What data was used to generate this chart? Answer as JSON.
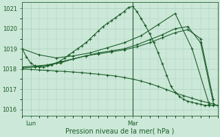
{
  "xlabel": "Pression niveau de la mer( hPa )",
  "ylim": [
    1015.7,
    1021.3
  ],
  "xlim": [
    0,
    46
  ],
  "yticks": [
    1016,
    1017,
    1018,
    1019,
    1020,
    1021
  ],
  "xtick_positions": [
    2,
    26
  ],
  "xtick_labels": [
    "Lun",
    "Mar"
  ],
  "vline_x": 26,
  "bg_color": "#cce8d8",
  "grid_color": "#aacfbe",
  "line_color": "#1a5c28",
  "series1_x": [
    0,
    1,
    2,
    3,
    4,
    5,
    6,
    7,
    8,
    9,
    10,
    11,
    12,
    13,
    14,
    15,
    16,
    17,
    18,
    19,
    20,
    21,
    22,
    23,
    24,
    25,
    26,
    27,
    28,
    29,
    30,
    31,
    32,
    33,
    34,
    35,
    36,
    37,
    38,
    39,
    40,
    41,
    42,
    43,
    44,
    45,
    46
  ],
  "series1_y": [
    1019.0,
    1018.6,
    1018.3,
    1018.15,
    1018.1,
    1018.1,
    1018.15,
    1018.2,
    1018.3,
    1018.4,
    1018.55,
    1018.7,
    1018.85,
    1019.0,
    1019.15,
    1019.3,
    1019.5,
    1019.7,
    1019.9,
    1020.1,
    1020.25,
    1020.4,
    1020.55,
    1020.7,
    1020.85,
    1021.05,
    1021.1,
    1020.85,
    1020.5,
    1020.15,
    1019.75,
    1019.3,
    1018.8,
    1018.25,
    1017.7,
    1017.15,
    1016.85,
    1016.65,
    1016.5,
    1016.4,
    1016.35,
    1016.3,
    1016.25,
    1016.2,
    1016.2,
    1016.2,
    1016.2
  ],
  "series2_x": [
    0,
    2,
    4,
    6,
    8,
    10,
    12,
    14,
    16,
    18,
    20,
    22,
    24,
    26,
    28,
    30,
    32,
    34,
    36,
    38,
    40,
    42,
    44,
    46
  ],
  "series2_y": [
    1018.0,
    1017.98,
    1017.95,
    1017.93,
    1017.9,
    1017.88,
    1017.85,
    1017.82,
    1017.78,
    1017.74,
    1017.7,
    1017.65,
    1017.58,
    1017.5,
    1017.4,
    1017.28,
    1017.14,
    1016.98,
    1016.82,
    1016.68,
    1016.55,
    1016.42,
    1016.32,
    1016.2
  ],
  "series3_x": [
    0,
    3,
    6,
    9,
    12,
    15,
    18,
    21,
    24,
    27,
    30,
    33,
    36,
    39,
    42,
    45
  ],
  "series3_y": [
    1018.1,
    1018.15,
    1018.2,
    1018.3,
    1018.5,
    1018.65,
    1018.75,
    1018.85,
    1018.95,
    1019.1,
    1019.3,
    1019.55,
    1019.8,
    1019.95,
    1019.5,
    1016.5
  ],
  "series4_x": [
    0,
    3,
    6,
    9,
    12,
    15,
    18,
    21,
    24,
    27,
    30,
    33,
    36,
    39,
    42,
    45
  ],
  "series4_y": [
    1018.05,
    1018.1,
    1018.2,
    1018.35,
    1018.5,
    1018.65,
    1018.8,
    1018.9,
    1019.0,
    1019.2,
    1019.45,
    1019.7,
    1020.0,
    1020.1,
    1019.3,
    1016.3
  ],
  "series5_x": [
    0,
    4,
    8,
    12,
    16,
    20,
    24,
    28,
    32,
    36,
    40,
    44
  ],
  "series5_y": [
    1019.0,
    1018.7,
    1018.55,
    1018.65,
    1018.8,
    1019.05,
    1019.3,
    1019.65,
    1020.2,
    1020.75,
    1019.0,
    1016.25
  ]
}
